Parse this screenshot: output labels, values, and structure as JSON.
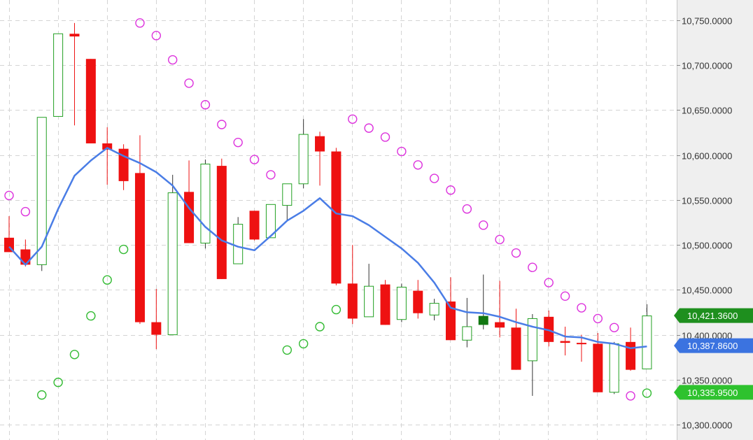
{
  "colors": {
    "up": "#22a022",
    "down": "#ee1111",
    "ma": "#4a7de6",
    "sar_above": "#dd33dd",
    "sar_below": "#33bb33",
    "grid": "#d4d4d4",
    "axis_bg": "#efefef",
    "price_tag": "#1e8f1e",
    "ma_tag": "#3b73e0",
    "sar_tag": "#2ec22e"
  },
  "chart_data": {
    "type": "candlestick",
    "ylim": [
      10290,
      10760
    ],
    "y_ticks": [
      10300,
      10350,
      10400,
      10450,
      10500,
      10550,
      10600,
      10650,
      10700,
      10750
    ],
    "y_tick_labels": [
      "10,300.0000",
      "10,350.0000",
      "10,400.0000",
      "10,450.0000",
      "10,500.0000",
      "10,550.0000",
      "10,600.0000",
      "10,650.0000",
      "10,700.0000",
      "10,750.0000"
    ],
    "grid": true,
    "candles": [
      {
        "o": 10508,
        "h": 10532,
        "l": 10492,
        "c": 10492,
        "f": false
      },
      {
        "o": 10495,
        "h": 10506,
        "l": 10476,
        "c": 10478,
        "f": false
      },
      {
        "o": 10478,
        "h": 10642,
        "l": 10471,
        "c": 10642,
        "f": false
      },
      {
        "o": 10643,
        "h": 10735,
        "l": 10643,
        "c": 10735,
        "f": false
      },
      {
        "o": 10735,
        "h": 10747,
        "l": 10633,
        "c": 10732,
        "f": false
      },
      {
        "o": 10707,
        "h": 10707,
        "l": 10613,
        "c": 10613,
        "f": false
      },
      {
        "o": 10613,
        "h": 10631,
        "l": 10567,
        "c": 10606,
        "f": false
      },
      {
        "o": 10607,
        "h": 10612,
        "l": 10561,
        "c": 10571,
        "f": false
      },
      {
        "o": 10580,
        "h": 10622,
        "l": 10412,
        "c": 10414,
        "f": false
      },
      {
        "o": 10414,
        "h": 10451,
        "l": 10384,
        "c": 10400,
        "f": false
      },
      {
        "o": 10400,
        "h": 10578,
        "l": 10400,
        "c": 10558,
        "f": false
      },
      {
        "o": 10559,
        "h": 10594,
        "l": 10502,
        "c": 10502,
        "f": false
      },
      {
        "o": 10502,
        "h": 10595,
        "l": 10496,
        "c": 10590,
        "f": false
      },
      {
        "o": 10588,
        "h": 10596,
        "l": 10462,
        "c": 10462,
        "f": false
      },
      {
        "o": 10479,
        "h": 10531,
        "l": 10479,
        "c": 10523,
        "f": false
      },
      {
        "o": 10538,
        "h": 10538,
        "l": 10505,
        "c": 10506,
        "f": false
      },
      {
        "o": 10508,
        "h": 10545,
        "l": 10508,
        "c": 10545,
        "f": false
      },
      {
        "o": 10544,
        "h": 10568,
        "l": 10527,
        "c": 10568,
        "f": false
      },
      {
        "o": 10568,
        "h": 10640,
        "l": 10563,
        "c": 10623,
        "f": false
      },
      {
        "o": 10621,
        "h": 10626,
        "l": 10566,
        "c": 10604,
        "f": false
      },
      {
        "o": 10604,
        "h": 10608,
        "l": 10455,
        "c": 10457,
        "f": false
      },
      {
        "o": 10457,
        "h": 10500,
        "l": 10412,
        "c": 10418,
        "f": false
      },
      {
        "o": 10420,
        "h": 10479,
        "l": 10420,
        "c": 10454,
        "f": false
      },
      {
        "o": 10456,
        "h": 10461,
        "l": 10411,
        "c": 10411,
        "f": false
      },
      {
        "o": 10417,
        "h": 10457,
        "l": 10414,
        "c": 10453,
        "f": false
      },
      {
        "o": 10449,
        "h": 10461,
        "l": 10418,
        "c": 10424,
        "f": false
      },
      {
        "o": 10422,
        "h": 10440,
        "l": 10416,
        "c": 10435,
        "f": false
      },
      {
        "o": 10437,
        "h": 10464,
        "l": 10394,
        "c": 10394,
        "f": false
      },
      {
        "o": 10394,
        "h": 10441,
        "l": 10386,
        "c": 10409,
        "f": false
      },
      {
        "o": 10411,
        "h": 10467,
        "l": 10406,
        "c": 10421,
        "f": true
      },
      {
        "o": 10414,
        "h": 10460,
        "l": 10397,
        "c": 10408,
        "f": false
      },
      {
        "o": 10408,
        "h": 10429,
        "l": 10361,
        "c": 10361,
        "f": false
      },
      {
        "o": 10371,
        "h": 10423,
        "l": 10332,
        "c": 10418,
        "f": false
      },
      {
        "o": 10420,
        "h": 10427,
        "l": 10387,
        "c": 10392,
        "f": false
      },
      {
        "o": 10393,
        "h": 10409,
        "l": 10377,
        "c": 10391,
        "f": false
      },
      {
        "o": 10391,
        "h": 10400,
        "l": 10370,
        "c": 10390,
        "f": false
      },
      {
        "o": 10390,
        "h": 10402,
        "l": 10336,
        "c": 10336,
        "f": false
      },
      {
        "o": 10336,
        "h": 10392,
        "l": 10334,
        "c": 10390,
        "f": false
      },
      {
        "o": 10392,
        "h": 10408,
        "l": 10360,
        "c": 10361,
        "f": false
      },
      {
        "o": 10362,
        "h": 10434,
        "l": 10362,
        "c": 10421,
        "f": false
      }
    ],
    "ma": [
      10498,
      10478,
      10498,
      10540,
      10577,
      10594,
      10608,
      10599,
      10591,
      10581,
      10566,
      10541,
      10520,
      10505,
      10498,
      10494,
      10510,
      10527,
      10538,
      10552,
      10535,
      10532,
      10522,
      10509,
      10496,
      10480,
      10458,
      10430,
      10425,
      10424,
      10420,
      10414,
      10409,
      10405,
      10398,
      10397,
      10392,
      10390,
      10385,
      10387
    ],
    "sar": [
      {
        "i": 0,
        "v": 10555,
        "pos": "above"
      },
      {
        "i": 1,
        "v": 10537,
        "pos": "above"
      },
      {
        "i": 2,
        "v": 10333,
        "pos": "below"
      },
      {
        "i": 3,
        "v": 10347,
        "pos": "below"
      },
      {
        "i": 4,
        "v": 10378,
        "pos": "below"
      },
      {
        "i": 5,
        "v": 10421,
        "pos": "below"
      },
      {
        "i": 6,
        "v": 10461,
        "pos": "below"
      },
      {
        "i": 7,
        "v": 10495,
        "pos": "below"
      },
      {
        "i": 8,
        "v": 10747,
        "pos": "above"
      },
      {
        "i": 9,
        "v": 10733,
        "pos": "above"
      },
      {
        "i": 10,
        "v": 10706,
        "pos": "above"
      },
      {
        "i": 11,
        "v": 10680,
        "pos": "above"
      },
      {
        "i": 12,
        "v": 10656,
        "pos": "above"
      },
      {
        "i": 13,
        "v": 10634,
        "pos": "above"
      },
      {
        "i": 14,
        "v": 10614,
        "pos": "above"
      },
      {
        "i": 15,
        "v": 10595,
        "pos": "above"
      },
      {
        "i": 16,
        "v": 10578,
        "pos": "above"
      },
      {
        "i": 17,
        "v": 10383,
        "pos": "below"
      },
      {
        "i": 18,
        "v": 10390,
        "pos": "below"
      },
      {
        "i": 19,
        "v": 10409,
        "pos": "below"
      },
      {
        "i": 20,
        "v": 10428,
        "pos": "below"
      },
      {
        "i": 21,
        "v": 10640,
        "pos": "above"
      },
      {
        "i": 22,
        "v": 10630,
        "pos": "above"
      },
      {
        "i": 23,
        "v": 10620,
        "pos": "above"
      },
      {
        "i": 24,
        "v": 10604,
        "pos": "above"
      },
      {
        "i": 25,
        "v": 10589,
        "pos": "above"
      },
      {
        "i": 26,
        "v": 10574,
        "pos": "above"
      },
      {
        "i": 27,
        "v": 10561,
        "pos": "above"
      },
      {
        "i": 28,
        "v": 10540,
        "pos": "above"
      },
      {
        "i": 29,
        "v": 10522,
        "pos": "above"
      },
      {
        "i": 30,
        "v": 10506,
        "pos": "above"
      },
      {
        "i": 31,
        "v": 10491,
        "pos": "above"
      },
      {
        "i": 32,
        "v": 10475,
        "pos": "above"
      },
      {
        "i": 33,
        "v": 10458,
        "pos": "above"
      },
      {
        "i": 34,
        "v": 10443,
        "pos": "above"
      },
      {
        "i": 35,
        "v": 10430,
        "pos": "above"
      },
      {
        "i": 36,
        "v": 10418,
        "pos": "above"
      },
      {
        "i": 37,
        "v": 10408,
        "pos": "above"
      },
      {
        "i": 38,
        "v": 10332,
        "pos": "above"
      },
      {
        "i": 39,
        "v": 10335,
        "pos": "below"
      }
    ],
    "tags": [
      {
        "value": 10421.36,
        "label": "10,421.3600",
        "kind": "price"
      },
      {
        "value": 10387.86,
        "label": "10,387.8600",
        "kind": "ma"
      },
      {
        "value": 10335.95,
        "label": "10,335.9500",
        "kind": "sar"
      }
    ]
  }
}
